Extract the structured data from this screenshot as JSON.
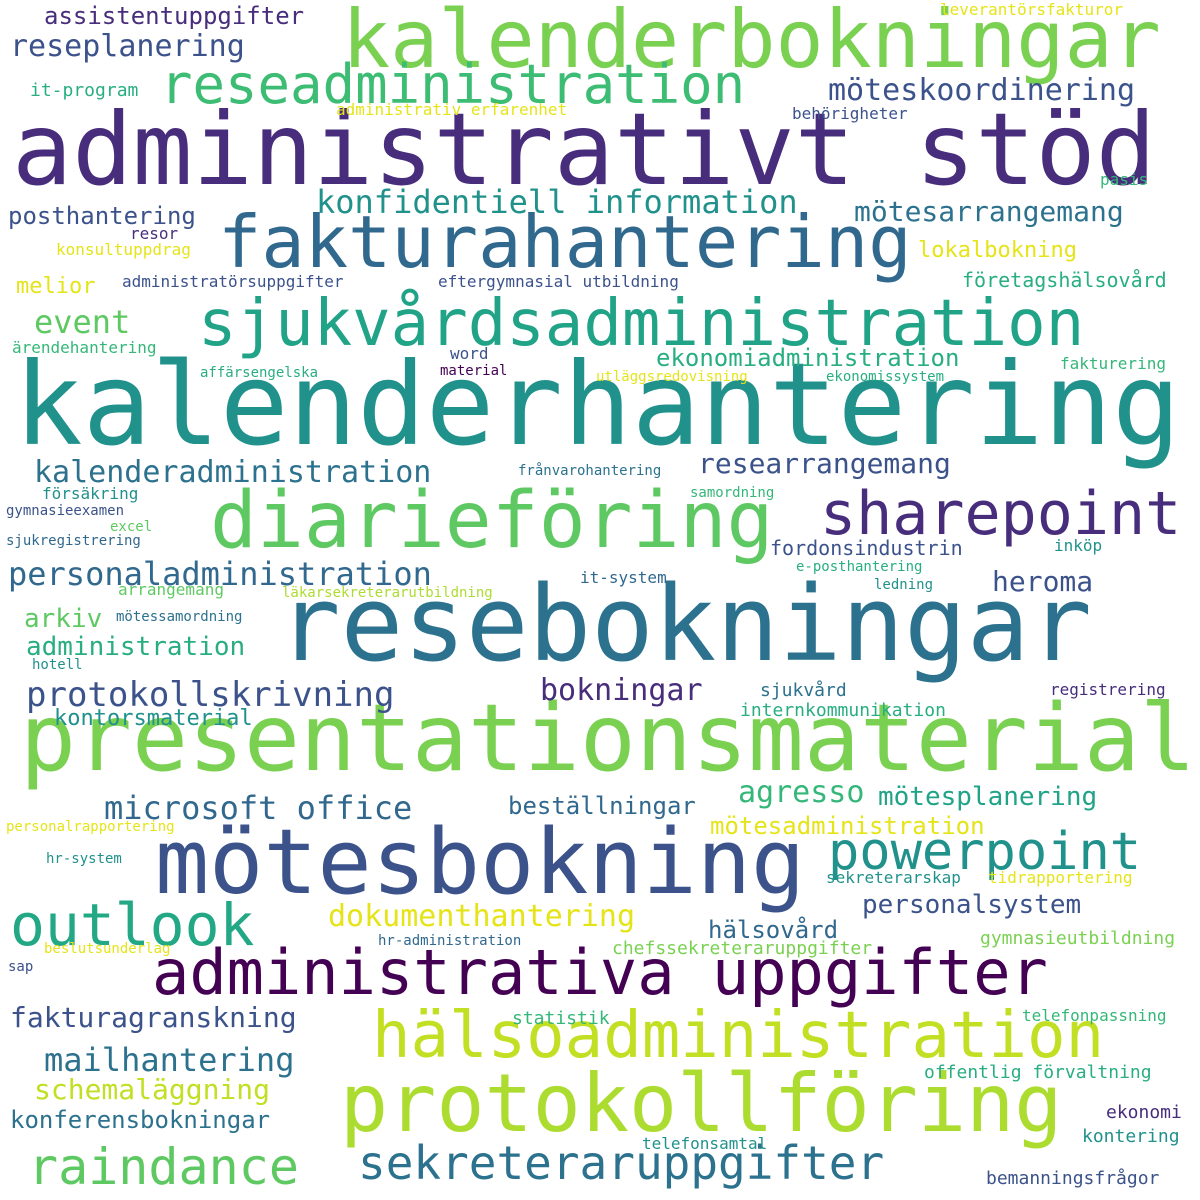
{
  "palette": {
    "dark_purple": "#472d7b",
    "indigo": "#3b528b",
    "steel_blue": "#2c728e",
    "teal": "#21918c",
    "sea_green": "#28ae80",
    "green": "#5ec962",
    "lime": "#addc30",
    "yellow": "#e5e419"
  },
  "words": [
    {
      "text": "kalenderhantering",
      "color": "#21918c"
    },
    {
      "text": "resebokningar",
      "color": "#2c728e"
    },
    {
      "text": "presentationsmaterial",
      "color": "#7ad151"
    },
    {
      "text": "administrativt stöd",
      "color": "#472d7b"
    },
    {
      "text": "mötesbokning",
      "color": "#3b528b"
    },
    {
      "text": "kalenderbokningar",
      "color": "#7ad151"
    },
    {
      "text": "protokollföring",
      "color": "#addc30"
    },
    {
      "text": "fakturahantering",
      "color": "#31688e"
    },
    {
      "text": "diarieföring",
      "color": "#5ec962"
    },
    {
      "text": "sjukvårdsadministration",
      "color": "#20a386"
    },
    {
      "text": "administrativa uppgifter",
      "color": "#440154"
    },
    {
      "text": "hälsoadministration",
      "color": "#c2df23"
    },
    {
      "text": "reseadministration",
      "color": "#3dbc74"
    },
    {
      "text": "sharepoint",
      "color": "#472d7b"
    },
    {
      "text": "outlook",
      "color": "#22a884"
    },
    {
      "text": "powerpoint",
      "color": "#21918c"
    },
    {
      "text": "raindance",
      "color": "#5ec962"
    },
    {
      "text": "sekreteraruppgifter",
      "color": "#2c728e"
    },
    {
      "text": "personaladministration",
      "color": "#31688e"
    },
    {
      "text": "protokollskrivning",
      "color": "#3b528b"
    },
    {
      "text": "microsoft office",
      "color": "#31688e"
    },
    {
      "text": "kalenderadministration",
      "color": "#2c728e"
    },
    {
      "text": "konfidentiell information",
      "color": "#21918c"
    },
    {
      "text": "mailhantering",
      "color": "#2c728e"
    },
    {
      "text": "möteskoordinering",
      "color": "#3b528b"
    },
    {
      "text": "mötesarrangemang",
      "color": "#2c728e"
    },
    {
      "text": "researrangemang",
      "color": "#3b528b"
    },
    {
      "text": "dokumenthantering",
      "color": "#e5e419"
    },
    {
      "text": "schemaläggning",
      "color": "#c2df23"
    },
    {
      "text": "fakturagranskning",
      "color": "#3b528b"
    },
    {
      "text": "bokningar",
      "color": "#472d7b"
    },
    {
      "text": "reseplanering",
      "color": "#3b528b"
    },
    {
      "text": "personalsystem",
      "color": "#3b528b"
    },
    {
      "text": "konferensbokningar",
      "color": "#2c728e"
    },
    {
      "text": "ekonomiadministration",
      "color": "#28ae80"
    },
    {
      "text": "agresso",
      "color": "#35b779"
    },
    {
      "text": "mötesplanering",
      "color": "#20a386"
    },
    {
      "text": "event",
      "color": "#5ec962"
    },
    {
      "text": "heroma",
      "color": "#3b528b"
    },
    {
      "text": "posthantering",
      "color": "#3b528b"
    },
    {
      "text": "assistentuppgifter",
      "color": "#472d7b"
    },
    {
      "text": "beställningar",
      "color": "#31688e"
    },
    {
      "text": "mötesadministration",
      "color": "#e5e419"
    },
    {
      "text": "hälsovård",
      "color": "#31688e"
    },
    {
      "text": "administration",
      "color": "#28ae80"
    },
    {
      "text": "kontorsmaterial",
      "color": "#21918c"
    },
    {
      "text": "arkiv",
      "color": "#5ec962"
    },
    {
      "text": "lokalbokning",
      "color": "#e5e419"
    },
    {
      "text": "melior",
      "color": "#e5e419"
    },
    {
      "text": "företagshälsovård",
      "color": "#28ae80"
    },
    {
      "text": "fordonsindustrin",
      "color": "#3b528b"
    },
    {
      "text": "offentlig förvaltning",
      "color": "#28ae80"
    },
    {
      "text": "gymnasieutbildning",
      "color": "#7ad151"
    },
    {
      "text": "chefssekreteraruppgifter",
      "color": "#7ad151"
    },
    {
      "text": "ekonomi",
      "color": "#472d7b"
    },
    {
      "text": "kontering",
      "color": "#21918c"
    },
    {
      "text": "sjukvård",
      "color": "#2c728e"
    },
    {
      "text": "internkommunikation",
      "color": "#28ae80"
    },
    {
      "text": "statistik",
      "color": "#35b779"
    },
    {
      "text": "tidrapportering",
      "color": "#e5e419"
    },
    {
      "text": "sekreterarskap",
      "color": "#21918c"
    },
    {
      "text": "bemanningsfrågor",
      "color": "#3b528b"
    },
    {
      "text": "telefonpassning",
      "color": "#35b779"
    },
    {
      "text": "telefonsamtal",
      "color": "#21918c"
    },
    {
      "text": "registrering",
      "color": "#472d7b"
    },
    {
      "text": "leverantörsfakturor",
      "color": "#e5e419"
    },
    {
      "text": "it-program",
      "color": "#28ae80"
    },
    {
      "text": "administrativ erfarenhet",
      "color": "#e5e419"
    },
    {
      "text": "behörigheter",
      "color": "#3b528b"
    },
    {
      "text": "pasis",
      "color": "#35b779"
    },
    {
      "text": "resor",
      "color": "#472d7b"
    },
    {
      "text": "konsultuppdrag",
      "color": "#e5e419"
    },
    {
      "text": "administratörsuppgifter",
      "color": "#3b528b"
    },
    {
      "text": "eftergymnasial utbildning",
      "color": "#3b528b"
    },
    {
      "text": "ärendehantering",
      "color": "#35b779"
    },
    {
      "text": "word",
      "color": "#3b528b"
    },
    {
      "text": "affärsengelska",
      "color": "#28ae80"
    },
    {
      "text": "material",
      "color": "#440154"
    },
    {
      "text": "utläggsredovisning",
      "color": "#e5e419"
    },
    {
      "text": "ekonomissystem",
      "color": "#28ae80"
    },
    {
      "text": "fakturering",
      "color": "#35b779"
    },
    {
      "text": "frånvarohantering",
      "color": "#2c728e"
    },
    {
      "text": "försäkring",
      "color": "#21918c"
    },
    {
      "text": "samordning",
      "color": "#35b779"
    },
    {
      "text": "gymnasieexamen",
      "color": "#3b528b"
    },
    {
      "text": "excel",
      "color": "#5ec962"
    },
    {
      "text": "sjukregistrering",
      "color": "#31688e"
    },
    {
      "text": "inköp",
      "color": "#21918c"
    },
    {
      "text": "e-posthantering",
      "color": "#28ae80"
    },
    {
      "text": "it-system",
      "color": "#31688e"
    },
    {
      "text": "ledning",
      "color": "#21918c"
    },
    {
      "text": "arrangemang",
      "color": "#5ec962"
    },
    {
      "text": "läkarsekreterarutbildning",
      "color": "#addc30"
    },
    {
      "text": "mötessamordning",
      "color": "#2c728e"
    },
    {
      "text": "hotell",
      "color": "#21918c"
    },
    {
      "text": "personalrapportering",
      "color": "#e5e419"
    },
    {
      "text": "hr-system",
      "color": "#21918c"
    },
    {
      "text": "beslutsunderlag",
      "color": "#e5e419"
    },
    {
      "text": "hr-administration",
      "color": "#31688e"
    },
    {
      "text": "sap",
      "color": "#3b528b"
    }
  ]
}
